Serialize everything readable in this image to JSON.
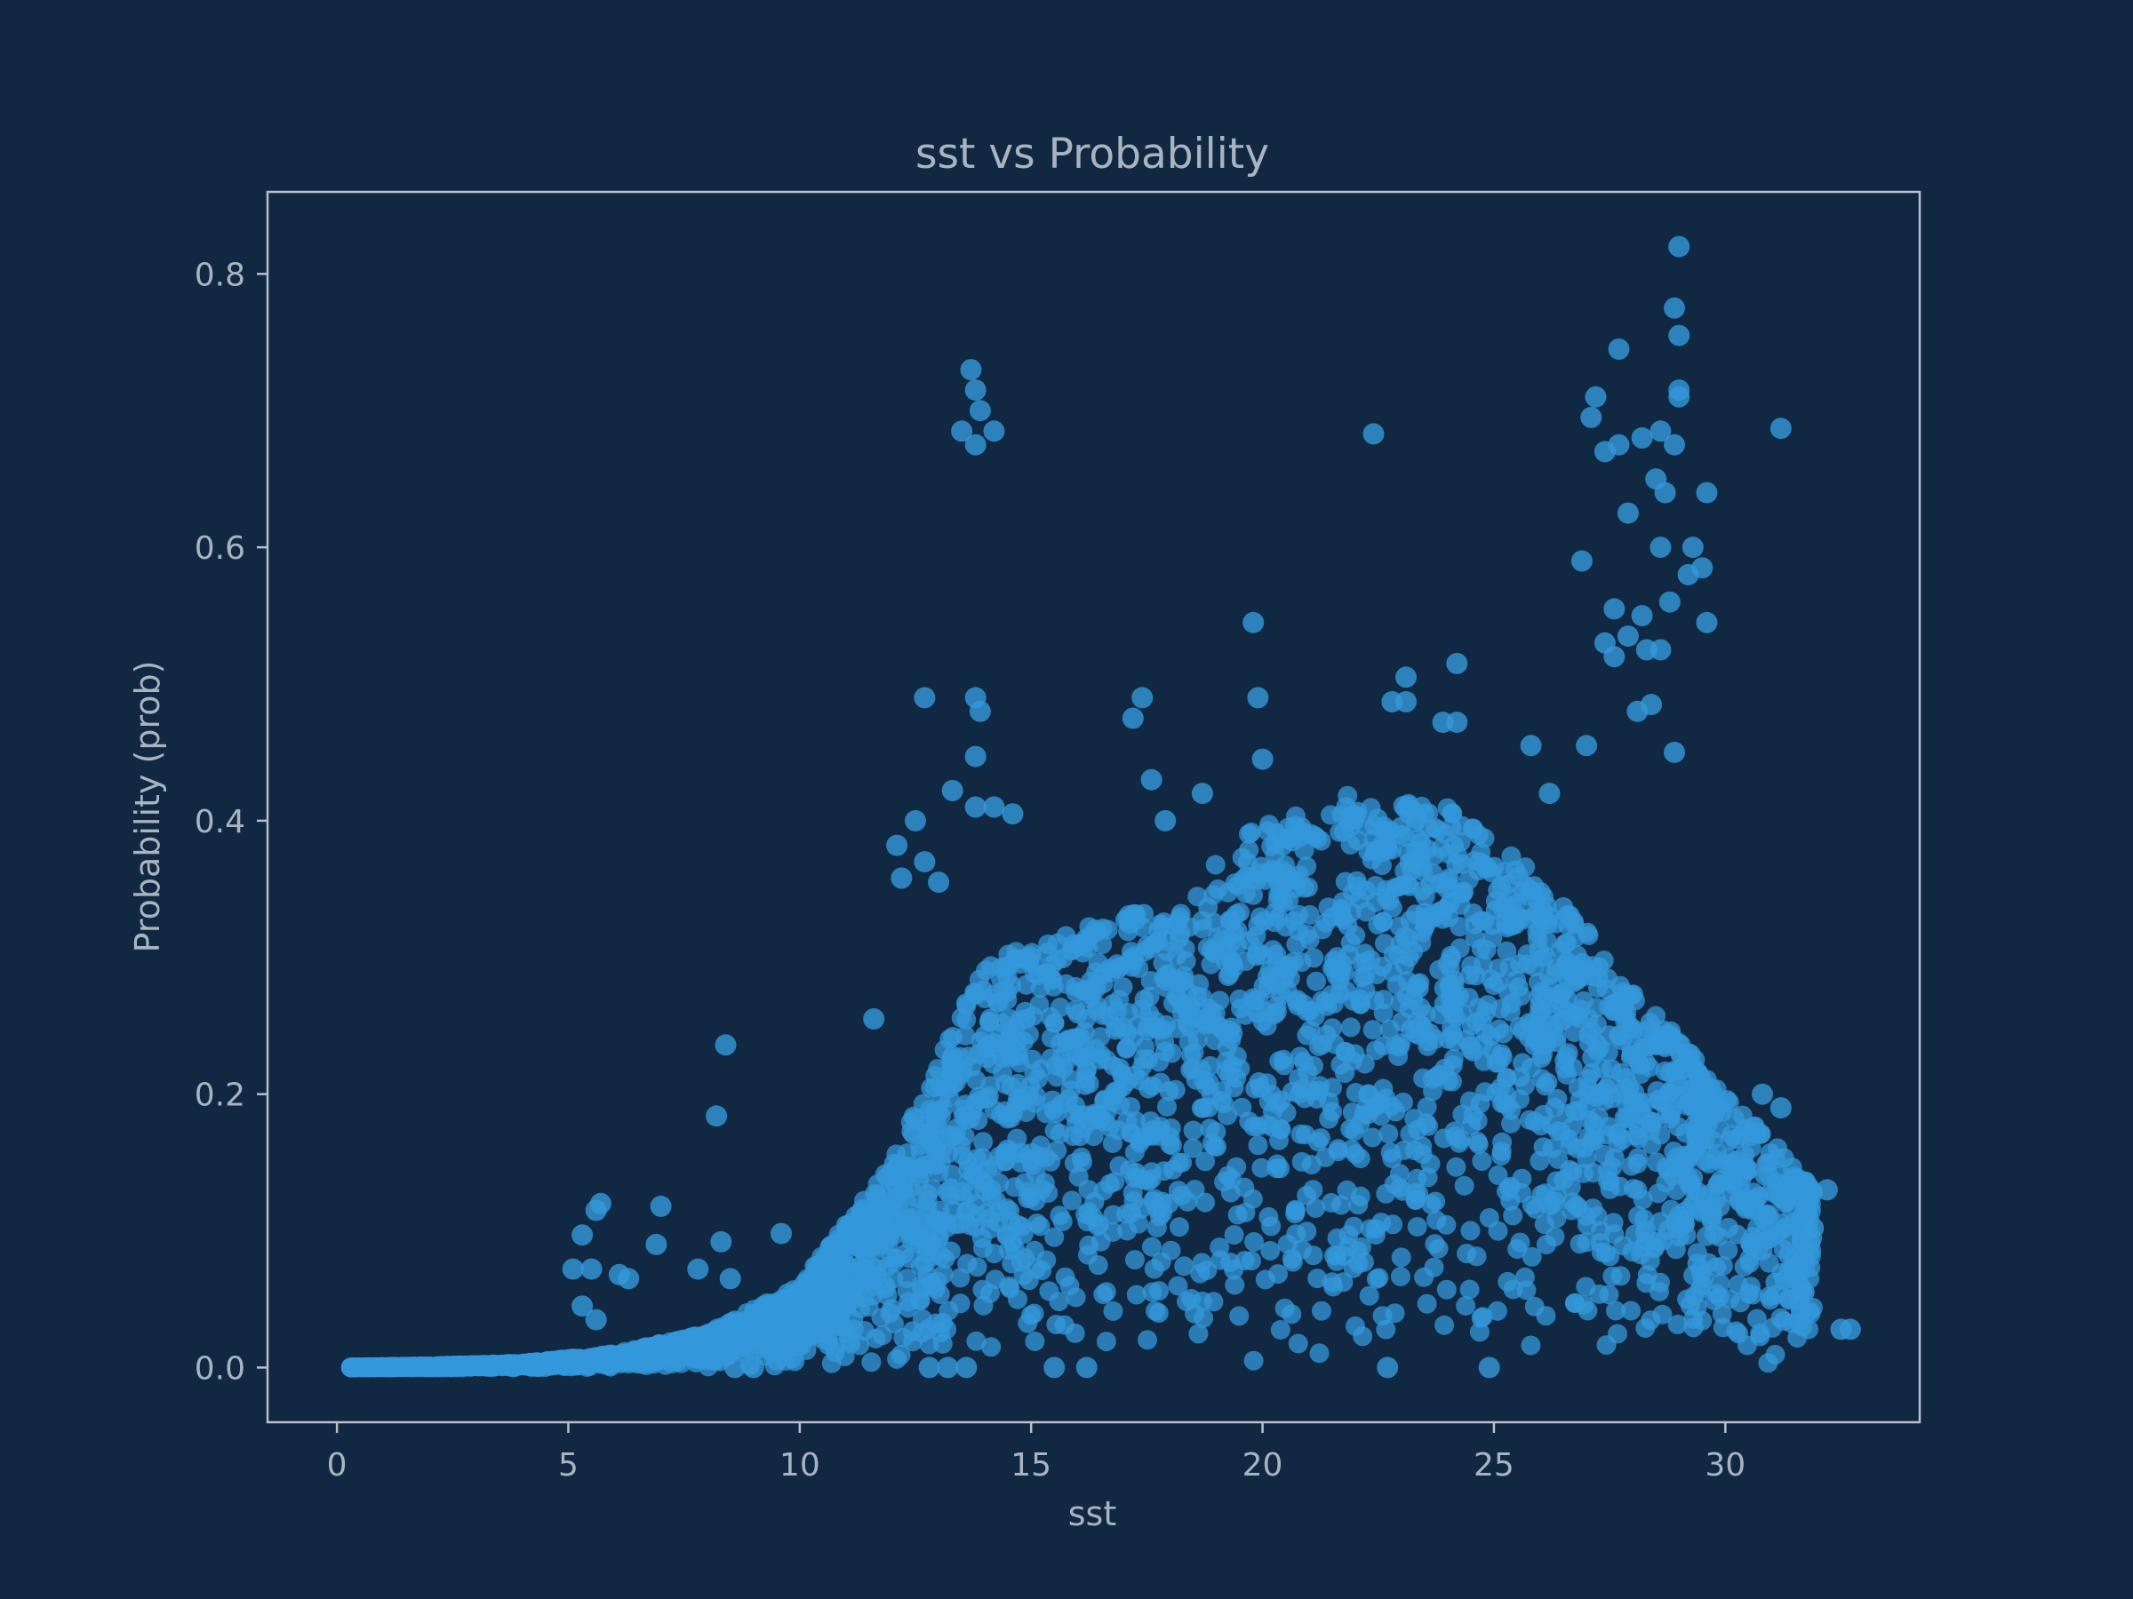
{
  "chart_data": {
    "type": "scatter",
    "title": "sst vs Probability",
    "xlabel": "sst",
    "ylabel": "Probability (prob)",
    "xlim": [
      -1.5,
      34.2
    ],
    "ylim": [
      -0.04,
      0.86
    ],
    "xticks": [
      0,
      5,
      10,
      15,
      20,
      25,
      30
    ],
    "yticks": [
      0.0,
      0.2,
      0.4,
      0.6,
      0.8
    ],
    "ytick_labels": [
      "0.0",
      "0.2",
      "0.4",
      "0.6",
      "0.8"
    ],
    "grid": false,
    "legend": "none",
    "colors": {
      "background": "#102842",
      "point": "#3498db",
      "axis": "#a9b4bf"
    },
    "cloud_summary": [
      [
        0,
        0.0
      ],
      [
        2,
        0.001
      ],
      [
        4,
        0.003
      ],
      [
        6,
        0.01
      ],
      [
        8,
        0.025
      ],
      [
        10,
        0.06
      ],
      [
        12,
        0.15
      ],
      [
        14,
        0.3
      ],
      [
        16,
        0.32
      ],
      [
        18,
        0.34
      ],
      [
        20,
        0.4
      ],
      [
        22,
        0.42
      ],
      [
        24,
        0.41
      ],
      [
        26,
        0.36
      ],
      [
        28,
        0.28
      ],
      [
        30,
        0.2
      ],
      [
        32,
        0.13
      ]
    ],
    "outliers": [
      [
        29.0,
        0.82
      ],
      [
        28.9,
        0.775
      ],
      [
        29.0,
        0.755
      ],
      [
        27.7,
        0.745
      ],
      [
        13.7,
        0.73
      ],
      [
        13.8,
        0.715
      ],
      [
        13.9,
        0.7
      ],
      [
        13.5,
        0.685
      ],
      [
        14.2,
        0.685
      ],
      [
        13.8,
        0.675
      ],
      [
        27.2,
        0.71
      ],
      [
        27.1,
        0.695
      ],
      [
        29.0,
        0.715
      ],
      [
        29.0,
        0.71
      ],
      [
        27.4,
        0.67
      ],
      [
        27.7,
        0.675
      ],
      [
        28.2,
        0.68
      ],
      [
        28.6,
        0.685
      ],
      [
        28.9,
        0.675
      ],
      [
        22.4,
        0.683
      ],
      [
        31.2,
        0.687
      ],
      [
        28.5,
        0.65
      ],
      [
        28.7,
        0.64
      ],
      [
        29.6,
        0.64
      ],
      [
        27.9,
        0.625
      ],
      [
        26.9,
        0.59
      ],
      [
        28.6,
        0.6
      ],
      [
        29.3,
        0.6
      ],
      [
        29.5,
        0.585
      ],
      [
        29.2,
        0.58
      ],
      [
        27.6,
        0.555
      ],
      [
        28.8,
        0.56
      ],
      [
        28.2,
        0.55
      ],
      [
        29.6,
        0.545
      ],
      [
        19.8,
        0.545
      ],
      [
        27.9,
        0.535
      ],
      [
        27.4,
        0.53
      ],
      [
        28.3,
        0.525
      ],
      [
        28.6,
        0.525
      ],
      [
        27.6,
        0.52
      ],
      [
        24.2,
        0.515
      ],
      [
        23.1,
        0.505
      ],
      [
        12.7,
        0.49
      ],
      [
        13.8,
        0.49
      ],
      [
        13.9,
        0.48
      ],
      [
        17.4,
        0.49
      ],
      [
        19.9,
        0.49
      ],
      [
        22.8,
        0.487
      ],
      [
        23.1,
        0.487
      ],
      [
        17.2,
        0.475
      ],
      [
        23.9,
        0.472
      ],
      [
        24.2,
        0.472
      ],
      [
        27.0,
        0.455
      ],
      [
        25.8,
        0.455
      ],
      [
        13.8,
        0.447
      ],
      [
        20.0,
        0.445
      ],
      [
        28.4,
        0.485
      ],
      [
        28.1,
        0.48
      ],
      [
        28.9,
        0.45
      ],
      [
        13.3,
        0.422
      ],
      [
        17.6,
        0.43
      ],
      [
        26.2,
        0.42
      ],
      [
        12.5,
        0.4
      ],
      [
        12.1,
        0.382
      ],
      [
        12.7,
        0.37
      ],
      [
        13.0,
        0.355
      ],
      [
        12.2,
        0.358
      ],
      [
        13.8,
        0.41
      ],
      [
        14.2,
        0.41
      ],
      [
        14.6,
        0.405
      ],
      [
        17.9,
        0.4
      ],
      [
        18.7,
        0.42
      ],
      [
        8.4,
        0.236
      ],
      [
        8.2,
        0.184
      ],
      [
        11.6,
        0.255
      ],
      [
        5.7,
        0.12
      ],
      [
        5.6,
        0.115
      ],
      [
        7.0,
        0.118
      ],
      [
        6.9,
        0.09
      ],
      [
        5.3,
        0.097
      ],
      [
        8.3,
        0.092
      ],
      [
        9.6,
        0.098
      ],
      [
        5.1,
        0.072
      ],
      [
        5.5,
        0.072
      ],
      [
        6.1,
        0.068
      ],
      [
        6.3,
        0.065
      ],
      [
        7.8,
        0.072
      ],
      [
        8.5,
        0.065
      ],
      [
        5.3,
        0.045
      ],
      [
        5.6,
        0.035
      ],
      [
        12.8,
        0.0
      ],
      [
        13.6,
        0.0
      ],
      [
        13.2,
        0.0
      ],
      [
        8.6,
        0.0
      ],
      [
        9.0,
        0.0
      ],
      [
        31.9,
        0.102
      ],
      [
        31.2,
        0.19
      ],
      [
        30.8,
        0.2
      ],
      [
        32.2,
        0.13
      ],
      [
        32.5,
        0.028
      ],
      [
        32.7,
        0.028
      ],
      [
        31.7,
        0.055
      ],
      [
        15.5,
        0.0
      ],
      [
        16.2,
        0.0
      ],
      [
        22.7,
        0.0
      ],
      [
        24.9,
        0.0
      ]
    ]
  }
}
